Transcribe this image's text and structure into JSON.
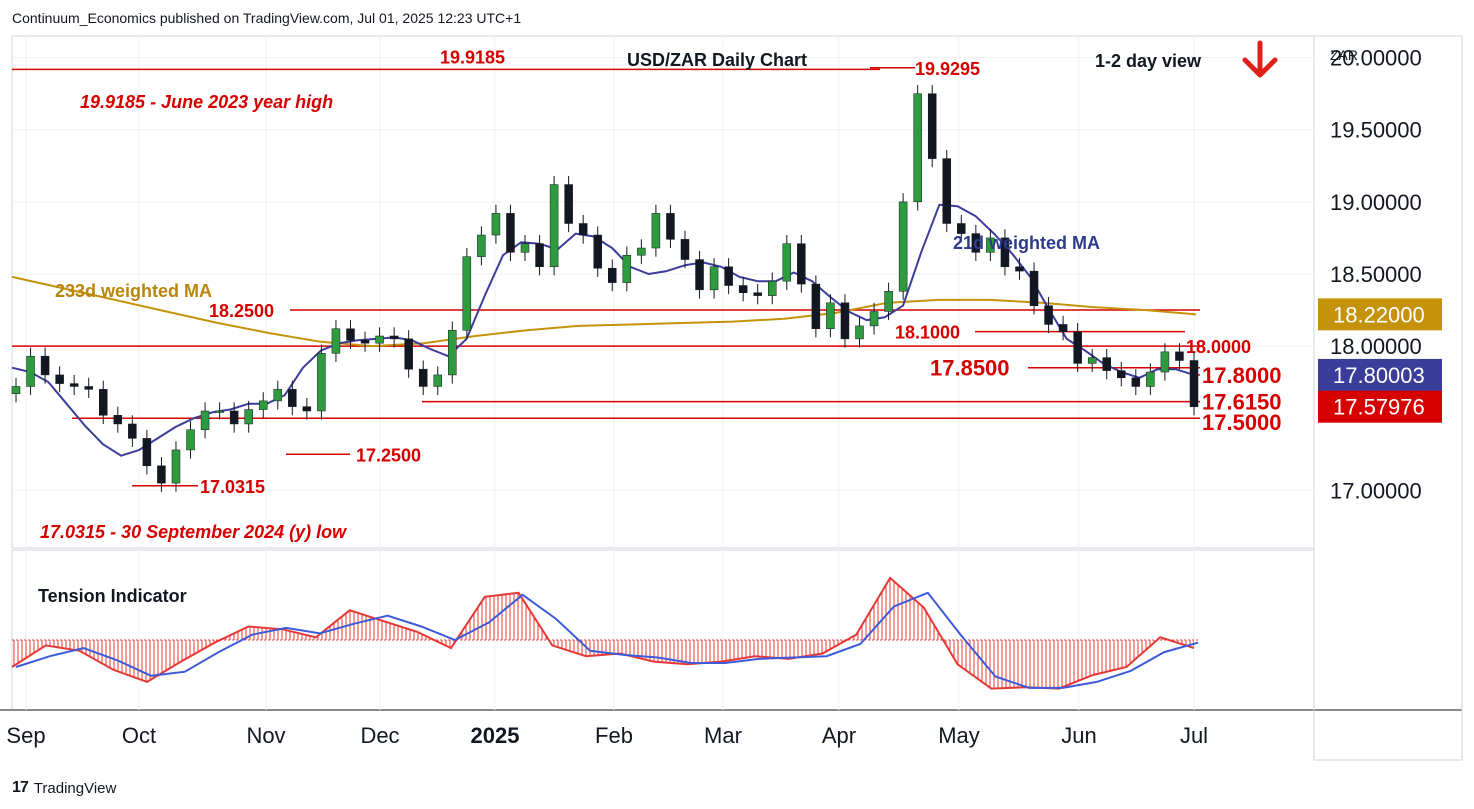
{
  "header": {
    "published": "Continuum_Economics published on TradingView.com, Jul 01, 2025 12:23 UTC+1"
  },
  "footer": {
    "logo_text": "TradingView"
  },
  "chart_data": {
    "type": "candlestick",
    "title": "USD/ZAR Daily Chart",
    "view": "1-2 day view",
    "view_direction": "down",
    "currency": "ZAR",
    "ylim": [
      16.6,
      20.15
    ],
    "y_ticks": [
      "20.00000",
      "19.50000",
      "19.00000",
      "18.50000",
      "18.00000",
      "17.00000"
    ],
    "x_ticks": [
      "Sep",
      "Oct",
      "Nov",
      "Dec",
      "2025",
      "Feb",
      "Mar",
      "Apr",
      "May",
      "Jun",
      "Jul"
    ],
    "price_tags": [
      {
        "label": "18.22000",
        "value": 18.22,
        "color": "#c4930b"
      },
      {
        "label": "17.80003",
        "value": 17.80003,
        "color": "#3a3d99"
      },
      {
        "label": "17.57976",
        "value": 17.57976,
        "color": "#d60000"
      }
    ],
    "levels": [
      {
        "value": 19.9185,
        "label": "19.9185"
      },
      {
        "value": 19.9295,
        "label": "19.9295"
      },
      {
        "value": 18.25,
        "label": "18.2500"
      },
      {
        "value": 18.1,
        "label": "18.1000"
      },
      {
        "value": 18.0,
        "label": "18.0000"
      },
      {
        "value": 17.85,
        "label": "17.8500"
      },
      {
        "value": 17.8,
        "label": "17.8000"
      },
      {
        "value": 17.615,
        "label": "17.6150"
      },
      {
        "value": 17.5,
        "label": "17.5000"
      },
      {
        "value": 17.25,
        "label": "17.2500"
      },
      {
        "value": 17.0315,
        "label": "17.0315"
      }
    ],
    "annotations": [
      "19.9185 - June 2023 year high",
      "17.0315 - 30 September 2024 (y) low",
      "233d weighted MA",
      "21d weighted MA",
      "Tension Indicator"
    ],
    "series": [
      {
        "name": "USD/ZAR",
        "kind": "candles",
        "close": [
          17.72,
          17.93,
          17.8,
          17.74,
          17.72,
          17.7,
          17.52,
          17.46,
          17.36,
          17.17,
          17.05,
          17.28,
          17.42,
          17.55,
          17.55,
          17.46,
          17.56,
          17.62,
          17.7,
          17.58,
          17.55,
          17.95,
          18.12,
          18.04,
          18.02,
          18.07,
          18.05,
          17.84,
          17.72,
          17.8,
          18.11,
          18.62,
          18.77,
          18.92,
          18.65,
          18.71,
          18.55,
          19.12,
          18.85,
          18.77,
          18.54,
          18.44,
          18.63,
          18.68,
          18.92,
          18.74,
          18.6,
          18.39,
          18.55,
          18.42,
          18.37,
          18.35,
          18.45,
          18.71,
          18.43,
          18.12,
          18.3,
          18.05,
          18.14,
          18.24,
          18.38,
          19.0,
          19.75,
          19.3,
          18.85,
          18.78,
          18.65,
          18.75,
          18.55,
          18.52,
          18.28,
          18.15,
          18.1,
          17.88,
          17.92,
          17.83,
          17.78,
          17.72,
          17.82,
          17.96,
          17.9,
          17.58
        ]
      },
      {
        "name": "21d weighted MA",
        "values": [
          17.85,
          17.82,
          17.75,
          17.6,
          17.45,
          17.32,
          17.24,
          17.28,
          17.36,
          17.44,
          17.5,
          17.54,
          17.56,
          17.6,
          17.6,
          17.66,
          17.85,
          17.97,
          18.02,
          18.04,
          18.05,
          18.06,
          18.04,
          17.98,
          17.93,
          18.05,
          18.35,
          18.63,
          18.72,
          18.71,
          18.67,
          18.78,
          18.76,
          18.68,
          18.55,
          18.5,
          18.52,
          18.56,
          18.58,
          18.55,
          18.48,
          18.45,
          18.45,
          18.51,
          18.45,
          18.34,
          18.24,
          18.18,
          18.2,
          18.28,
          18.65,
          18.98,
          18.97,
          18.9,
          18.78,
          18.64,
          18.48,
          18.26,
          18.05,
          17.97,
          17.88,
          17.82,
          17.78,
          17.84,
          17.84,
          17.8
        ]
      },
      {
        "name": "233d weighted MA",
        "values": [
          18.48,
          18.4,
          18.32,
          18.24,
          18.16,
          18.09,
          18.03,
          18.0,
          18.02,
          18.07,
          18.11,
          18.14,
          18.15,
          18.16,
          18.17,
          18.19,
          18.23,
          18.3,
          18.32,
          18.32,
          18.3,
          18.27,
          18.25,
          18.22
        ]
      },
      {
        "name": "Tension Indicator",
        "values": [
          -1.0,
          -0.2,
          -0.4,
          -1.1,
          -1.55,
          -0.8,
          -0.1,
          0.5,
          0.4,
          0.1,
          1.1,
          0.7,
          0.3,
          -0.3,
          1.6,
          1.75,
          -0.2,
          -0.6,
          -0.5,
          -0.8,
          -0.9,
          -0.8,
          -0.6,
          -0.7,
          -0.5,
          0.2,
          2.3,
          1.2,
          -0.9,
          -1.8,
          -1.75,
          -1.8,
          -1.3,
          -1.0,
          0.1,
          -0.3
        ]
      }
    ],
    "tension_x": [
      "Sep",
      "Sep",
      "Oct",
      "Oct",
      "Oct",
      "Oct",
      "Nov",
      "Nov",
      "Nov",
      "Nov",
      "Nov",
      "Dec",
      "Dec",
      "Dec",
      "Jan",
      "Jan",
      "Feb",
      "Feb",
      "Feb",
      "Feb",
      "Mar",
      "Mar",
      "Mar",
      "Mar",
      "Mar",
      "Apr",
      "Apr",
      "Apr",
      "May",
      "May",
      "May",
      "Jun",
      "Jun",
      "Jun",
      "Jun",
      "Jul"
    ]
  }
}
